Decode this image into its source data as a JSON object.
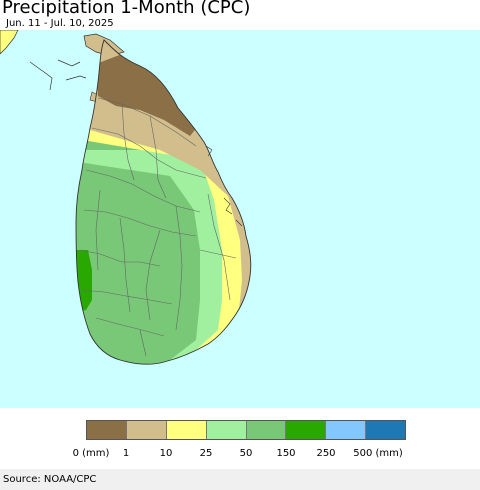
{
  "title": "Precipitation 1-Month (CPC)",
  "subtitle": "Jun. 11 - Jul. 10, 2025",
  "colors": {
    "ocean": "#ccffff",
    "outline": "#333333",
    "district_lines": "#666666"
  },
  "legend": {
    "colors": [
      "#8b6f47",
      "#d2be8c",
      "#ffff80",
      "#a0f0a0",
      "#78c878",
      "#28a800",
      "#82c8ff",
      "#1e78b4"
    ],
    "labels": [
      "0 (mm)",
      "1",
      "10",
      "25",
      "50",
      "150",
      "250",
      "500 (mm)"
    ]
  },
  "source": "Source: NOAA/CPC"
}
